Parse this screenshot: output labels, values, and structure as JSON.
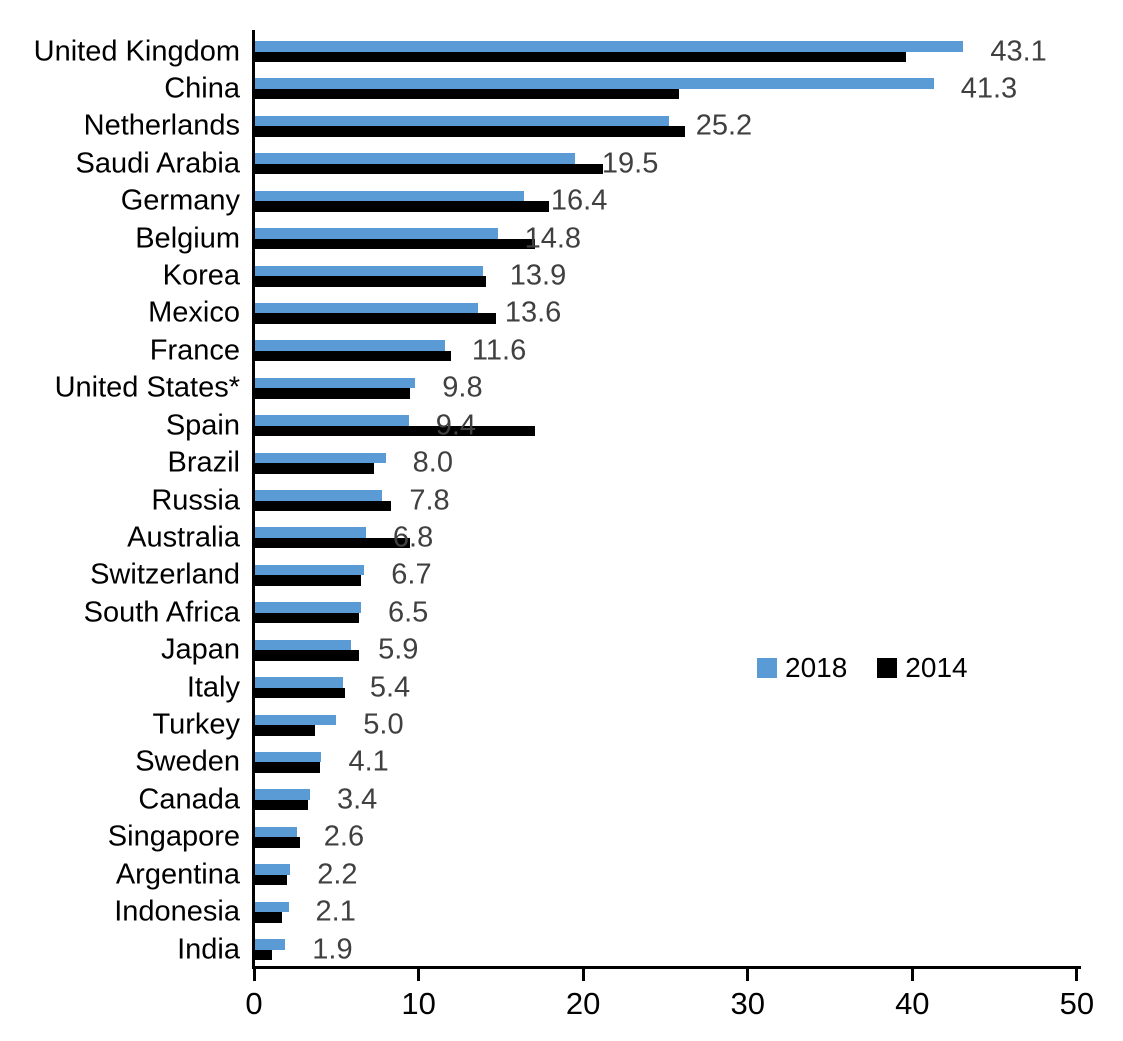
{
  "chart_data": {
    "type": "bar",
    "orientation": "horizontal",
    "title": "",
    "xlabel": "",
    "ylabel": "",
    "xlim": [
      0,
      50
    ],
    "xticks": [
      0,
      10,
      20,
      30,
      40,
      50
    ],
    "grid": false,
    "legend_position": "middle-right",
    "value_label_color": "#404040",
    "categories": [
      "United Kingdom",
      "China",
      "Netherlands",
      "Saudi Arabia",
      "Germany",
      "Belgium",
      "Korea",
      "Mexico",
      "France",
      "United States*",
      "Spain",
      "Brazil",
      "Russia",
      "Australia",
      "Switzerland",
      "South Africa",
      "Japan",
      "Italy",
      "Turkey",
      "Sweden",
      "Canada",
      "Singapore",
      "Argentina",
      "Indonesia",
      "India"
    ],
    "series": [
      {
        "name": "2018",
        "color": "#5B9BD5",
        "data_labels_shown": true,
        "values": [
          43.1,
          41.3,
          25.2,
          19.5,
          16.4,
          14.8,
          13.9,
          13.6,
          11.6,
          9.8,
          9.4,
          8.0,
          7.8,
          6.8,
          6.7,
          6.5,
          5.9,
          5.4,
          5.0,
          4.1,
          3.4,
          2.6,
          2.2,
          2.1,
          1.9
        ]
      },
      {
        "name": "2014",
        "color": "#000000",
        "data_labels_shown": false,
        "values": [
          39.6,
          25.8,
          26.2,
          21.2,
          17.9,
          17.1,
          14.1,
          14.7,
          12.0,
          9.5,
          17.1,
          7.3,
          8.3,
          9.5,
          6.5,
          6.4,
          6.4,
          5.5,
          3.7,
          4.0,
          3.3,
          2.8,
          2.0,
          1.7,
          1.1
        ]
      }
    ]
  }
}
